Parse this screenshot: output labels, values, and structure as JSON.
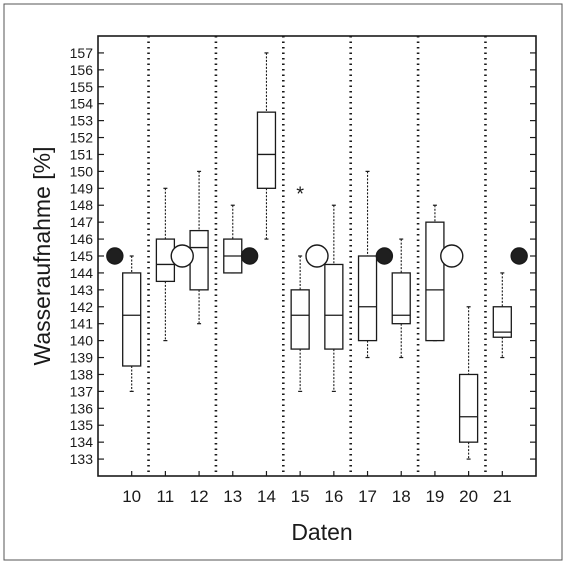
{
  "chart_data": {
    "type": "box",
    "xlabel": "Daten",
    "ylabel": "Wasseraufnahme [%]",
    "ylim": [
      132,
      158
    ],
    "yticks": [
      133,
      134,
      135,
      136,
      137,
      138,
      139,
      140,
      141,
      142,
      143,
      144,
      145,
      146,
      147,
      148,
      149,
      150,
      151,
      152,
      153,
      154,
      155,
      156,
      157
    ],
    "xticks": [
      "10",
      "11",
      "12",
      "13",
      "14",
      "15",
      "16",
      "17",
      "18",
      "19",
      "20",
      "21"
    ],
    "boxes": [
      {
        "label": "10",
        "min": 137,
        "q1": 138.5,
        "median": 141.5,
        "q3": 144,
        "max": 145
      },
      {
        "label": "11",
        "min": 140,
        "q1": 143.5,
        "median": 144.5,
        "q3": 146,
        "max": 149
      },
      {
        "label": "12",
        "min": 141,
        "q1": 143,
        "median": 145.5,
        "q3": 146.5,
        "max": 150
      },
      {
        "label": "13",
        "min": 144,
        "q1": 144,
        "median": 145,
        "q3": 146,
        "max": 148
      },
      {
        "label": "14",
        "min": 146,
        "q1": 149,
        "median": 151,
        "q3": 153.5,
        "max": 157
      },
      {
        "label": "15",
        "min": 137,
        "q1": 139.5,
        "median": 141.5,
        "q3": 143,
        "max": 145,
        "outliers": [
          148.8
        ]
      },
      {
        "label": "16",
        "min": 137,
        "q1": 139.5,
        "median": 141.5,
        "q3": 144.5,
        "max": 148
      },
      {
        "label": "17",
        "min": 139,
        "q1": 140,
        "median": 142,
        "q3": 145,
        "max": 150
      },
      {
        "label": "18",
        "min": 139,
        "q1": 141,
        "median": 141.5,
        "q3": 144,
        "max": 146
      },
      {
        "label": "19",
        "min": 140,
        "q1": 140,
        "median": 143,
        "q3": 147,
        "max": 148
      },
      {
        "label": "20",
        "min": 133,
        "q1": 134,
        "median": 135.5,
        "q3": 138,
        "max": 142
      },
      {
        "label": "21",
        "min": 139,
        "q1": 140.2,
        "median": 140.5,
        "q3": 142,
        "max": 144
      }
    ],
    "markers": [
      {
        "pos": 9.5,
        "y": 145,
        "style": "filled"
      },
      {
        "pos": 11.5,
        "y": 145,
        "style": "open"
      },
      {
        "pos": 13.5,
        "y": 145,
        "style": "filled"
      },
      {
        "pos": 15.5,
        "y": 145,
        "style": "open"
      },
      {
        "pos": 17.5,
        "y": 145,
        "style": "filled"
      },
      {
        "pos": 19.5,
        "y": 145,
        "style": "open"
      },
      {
        "pos": 21.5,
        "y": 145,
        "style": "filled"
      }
    ],
    "separators": [
      10.5,
      12.5,
      14.5,
      16.5,
      18.5,
      20.5
    ],
    "grid": false
  }
}
